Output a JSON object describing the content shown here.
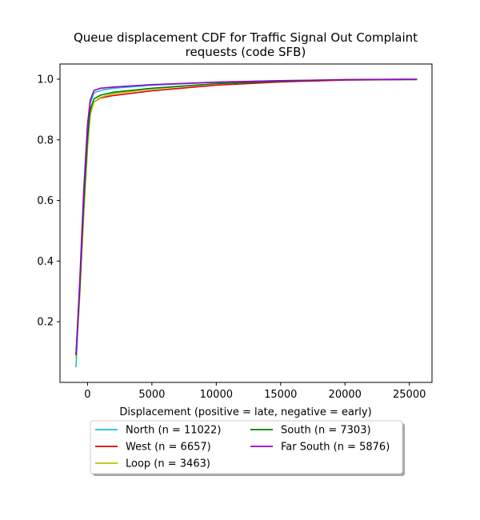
{
  "chart_data": {
    "type": "line",
    "title_lines": [
      "Queue displacement CDF for Traffic Signal Out Complaint",
      "requests (code SFB)"
    ],
    "xlabel": "Displacement (positive = late, negative = early)",
    "ylabel": "",
    "xlim": [
      -2140,
      26760
    ],
    "ylim": [
      0.0,
      1.05
    ],
    "xticks": [
      0,
      5000,
      10000,
      15000,
      20000,
      25000
    ],
    "xtick_labels": [
      "0",
      "5000",
      "10000",
      "15000",
      "20000",
      "25000"
    ],
    "yticks": [
      0.2,
      0.4,
      0.6,
      0.8,
      1.0
    ],
    "ytick_labels": [
      "0.2",
      "0.4",
      "0.6",
      "0.8",
      "1.0"
    ],
    "grid": false,
    "legend_placement": "below plot, 2 columns, with shadow",
    "series": [
      {
        "name": "North (n = 11022)",
        "color": "#17becf",
        "points": [
          [
            -900,
            0.05
          ],
          [
            -600,
            0.3
          ],
          [
            -300,
            0.62
          ],
          [
            0,
            0.84
          ],
          [
            200,
            0.92
          ],
          [
            500,
            0.955
          ],
          [
            1000,
            0.963
          ],
          [
            2000,
            0.97
          ],
          [
            5000,
            0.98
          ],
          [
            10000,
            0.99
          ],
          [
            15000,
            0.995
          ],
          [
            20000,
            0.998
          ],
          [
            25600,
            0.999
          ]
        ]
      },
      {
        "name": "West (n = 6657)",
        "color": "#e00000",
        "points": [
          [
            -900,
            0.09
          ],
          [
            -600,
            0.31
          ],
          [
            -300,
            0.56
          ],
          [
            0,
            0.79
          ],
          [
            200,
            0.89
          ],
          [
            500,
            0.925
          ],
          [
            1000,
            0.938
          ],
          [
            2000,
            0.946
          ],
          [
            5000,
            0.962
          ],
          [
            10000,
            0.98
          ],
          [
            15000,
            0.991
          ],
          [
            20000,
            0.997
          ],
          [
            25600,
            0.999
          ]
        ]
      },
      {
        "name": "Loop (n = 3463)",
        "color": "#bfbf00",
        "points": [
          [
            -900,
            0.08
          ],
          [
            -600,
            0.29
          ],
          [
            -300,
            0.55
          ],
          [
            0,
            0.77
          ],
          [
            200,
            0.88
          ],
          [
            500,
            0.925
          ],
          [
            1000,
            0.94
          ],
          [
            2000,
            0.952
          ],
          [
            5000,
            0.968
          ],
          [
            10000,
            0.985
          ],
          [
            15000,
            0.994
          ],
          [
            20000,
            0.999
          ],
          [
            25600,
            1.0
          ]
        ]
      },
      {
        "name": "South (n = 7303)",
        "color": "#008000",
        "points": [
          [
            -900,
            0.09
          ],
          [
            -600,
            0.31
          ],
          [
            -300,
            0.58
          ],
          [
            0,
            0.8
          ],
          [
            200,
            0.9
          ],
          [
            500,
            0.935
          ],
          [
            1000,
            0.947
          ],
          [
            2000,
            0.957
          ],
          [
            5000,
            0.97
          ],
          [
            10000,
            0.985
          ],
          [
            15000,
            0.993
          ],
          [
            20000,
            0.998
          ],
          [
            25600,
            0.999
          ]
        ]
      },
      {
        "name": "Far South (n = 5876)",
        "color": "#9400d3",
        "points": [
          [
            -900,
            0.09
          ],
          [
            -600,
            0.34
          ],
          [
            -300,
            0.63
          ],
          [
            0,
            0.85
          ],
          [
            200,
            0.93
          ],
          [
            500,
            0.963
          ],
          [
            1000,
            0.97
          ],
          [
            2000,
            0.974
          ],
          [
            5000,
            0.982
          ],
          [
            10000,
            0.99
          ],
          [
            15000,
            0.995
          ],
          [
            20000,
            0.998
          ],
          [
            25600,
            1.0
          ]
        ]
      }
    ]
  }
}
